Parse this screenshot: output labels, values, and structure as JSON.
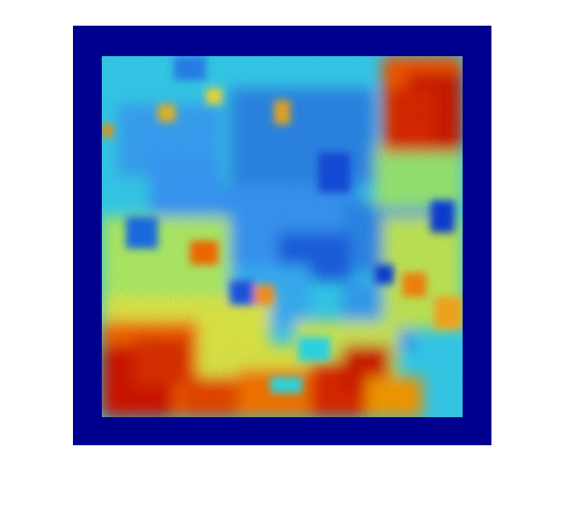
{
  "image": {
    "kind": "false-color heatmap (jet colormap) of a noisy 2D field",
    "colormap": "jet",
    "border_color": "#00008f",
    "background_color": "#ffffff",
    "colors": {
      "red": "#d40000",
      "orange": "#ff7a00",
      "yellow": "#f2f230",
      "cyan": "#2ee6f0",
      "light-blue": "#3aa8ff",
      "blue": "#0a4fe6",
      "dark-blue": "#00008f"
    }
  }
}
